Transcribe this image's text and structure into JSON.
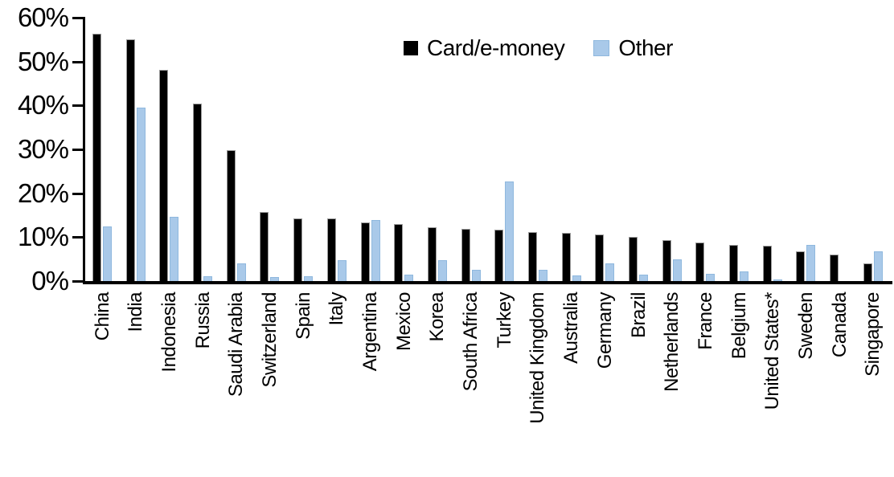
{
  "chart_data": {
    "type": "bar",
    "title": "",
    "xlabel": "",
    "ylabel": "",
    "ylim": [
      0,
      60
    ],
    "ytick_step": 10,
    "ytick_labels": [
      "0%",
      "10%",
      "20%",
      "30%",
      "40%",
      "50%",
      "60%"
    ],
    "grid": false,
    "legend_position": "top-center",
    "categories": [
      "China",
      "India",
      "Indonesia",
      "Russia",
      "Saudi Arabia",
      "Switzerland",
      "Spain",
      "Italy",
      "Argentina",
      "Mexico",
      "Korea",
      "South Africa",
      "Turkey",
      "United Kingdom",
      "Australia",
      "Germany",
      "Brazil",
      "Netherlands",
      "France",
      "Belgium",
      "United States*",
      "Sweden",
      "Canada",
      "Singapore"
    ],
    "series": [
      {
        "name": "Card/e-money",
        "color": "#000000",
        "values": [
          56.3,
          55.0,
          48.2,
          40.5,
          29.9,
          15.7,
          14.3,
          14.2,
          13.4,
          13.0,
          12.3,
          11.8,
          11.7,
          11.1,
          10.9,
          10.6,
          10.0,
          9.3,
          8.7,
          8.3,
          8.0,
          6.7,
          6.1,
          4.0
        ]
      },
      {
        "name": "Other",
        "color": "#a9c9e9",
        "values": [
          12.4,
          39.6,
          14.6,
          1.1,
          4.0,
          0.9,
          1.1,
          4.8,
          13.9,
          1.5,
          4.7,
          2.6,
          22.6,
          2.5,
          1.2,
          4.0,
          1.4,
          5.0,
          1.7,
          2.2,
          0.4,
          8.3,
          0.0,
          6.8
        ]
      }
    ],
    "axis_color": "#000000",
    "background_color": "#ffffff"
  }
}
